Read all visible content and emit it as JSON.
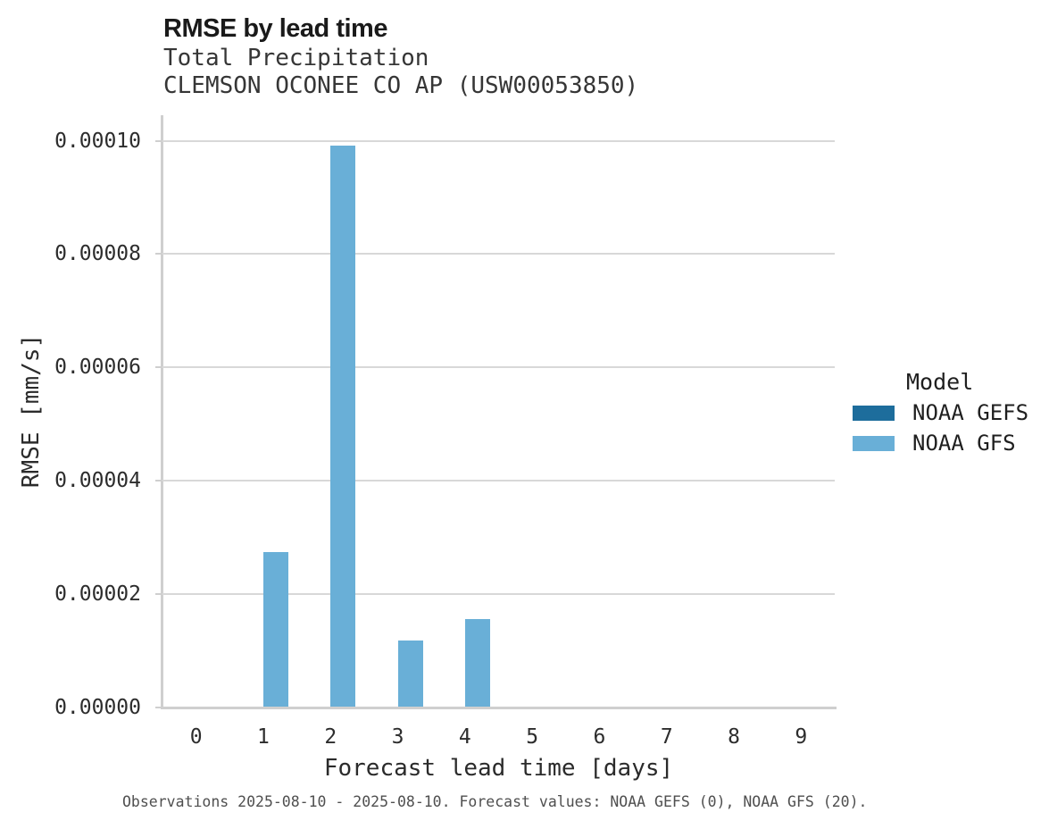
{
  "chart_data": {
    "type": "bar",
    "title": "RMSE by lead time",
    "subtitle": [
      "Total Precipitation",
      "CLEMSON OCONEE CO AP (USW00053850)"
    ],
    "xlabel": "Forecast lead time [days]",
    "ylabel": "RMSE [mm/s]",
    "caption": "Observations 2025-08-10 - 2025-08-10. Forecast values: NOAA GEFS (0), NOAA GFS (20).",
    "categories": [
      "0",
      "1",
      "2",
      "3",
      "4",
      "5",
      "6",
      "7",
      "8",
      "9"
    ],
    "series": [
      {
        "name": "NOAA GEFS",
        "color": "#1d6d9c",
        "values": [
          0,
          0,
          0,
          0,
          0,
          0,
          0,
          0,
          0,
          0
        ]
      },
      {
        "name": "NOAA GFS",
        "color": "#69afd7",
        "values": [
          0,
          2.73e-05,
          9.92e-05,
          1.18e-05,
          1.55e-05,
          0,
          0,
          0,
          0,
          0
        ]
      }
    ],
    "ylim": [
      0,
      0.0001045
    ],
    "yticks": [
      0,
      2e-05,
      4e-05,
      6e-05,
      8e-05,
      0.0001
    ],
    "ytick_labels": [
      "0.00000",
      "0.00002",
      "0.00004",
      "0.00006",
      "0.00008",
      "0.00010"
    ],
    "legend_title": "Model",
    "legend_position": "right",
    "grid": true
  }
}
